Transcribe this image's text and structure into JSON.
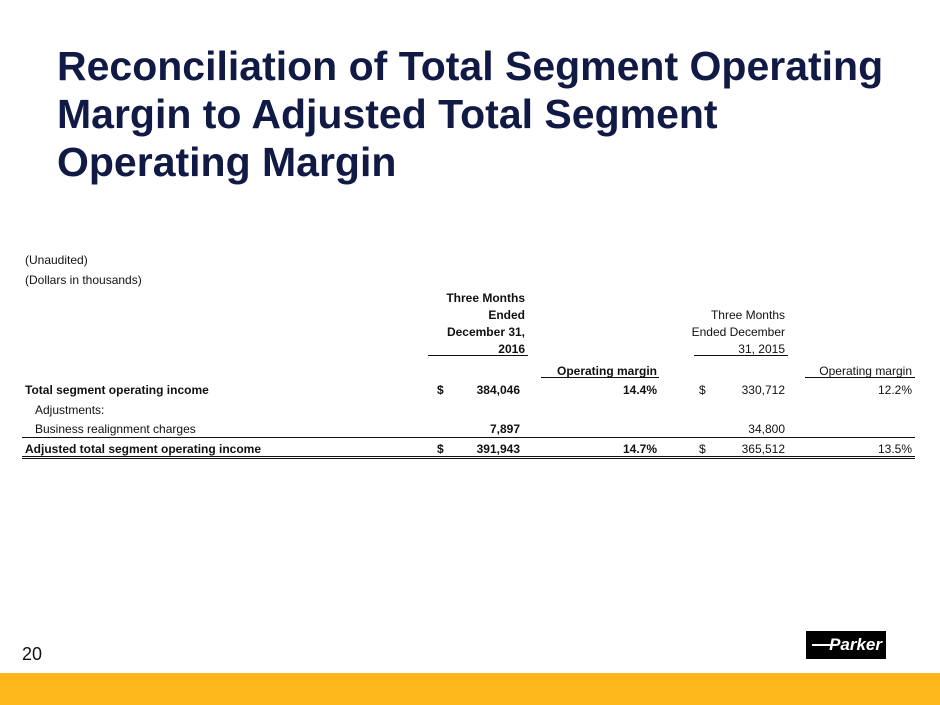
{
  "title": "Reconciliation of Total Segment Operating Margin to Adjusted Total Segment Operating Margin",
  "notes": [
    "(Unaudited)",
    "(Dollars in thousands)"
  ],
  "headers": {
    "col1": [
      "Three Months",
      "Ended",
      "December 31,",
      "2016"
    ],
    "col2": "Operating margin",
    "col3": [
      "Three Months",
      "Ended December",
      "31, 2015"
    ],
    "col4": "Operating margin"
  },
  "rows": [
    {
      "label": "Total segment operating income",
      "cur1": "$",
      "val1": "384,046",
      "m1": "14.4%",
      "cur2": "$",
      "val2": "330,712",
      "m2": "12.2%"
    },
    {
      "label": "Adjustments:"
    },
    {
      "label": "Business realignment charges",
      "val1": "7,897",
      "val2": "34,800"
    },
    {
      "label": "Adjusted total segment operating income",
      "cur1": "$",
      "val1": "391,943",
      "m1": "14.7%",
      "cur2": "$",
      "val2": "365,512",
      "m2": "13.5%"
    }
  ],
  "page_number": "20",
  "logo": "Parker",
  "colors": {
    "title": "#111a45",
    "footer": "#fdb71a"
  }
}
